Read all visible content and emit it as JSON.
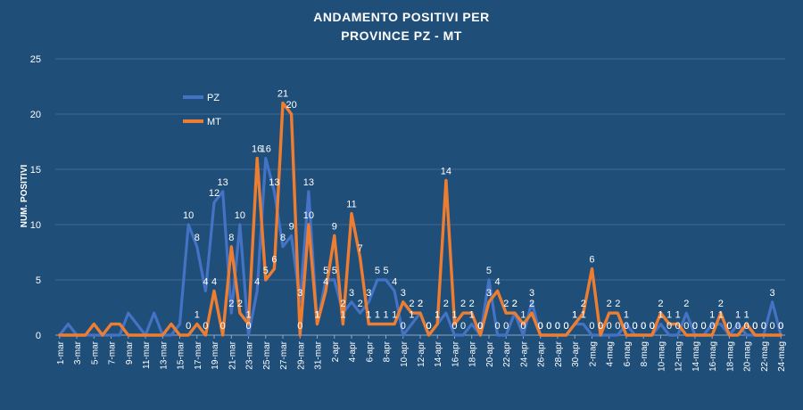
{
  "chart_data": {
    "type": "line",
    "title_lines": [
      "ANDAMENTO POSITIVI  PER",
      "PROVINCE  PZ - MT"
    ],
    "xlabel": "",
    "ylabel": "NUM. POSITIVI",
    "ylim": [
      0,
      25
    ],
    "yticks": [
      0,
      5,
      10,
      15,
      20,
      25
    ],
    "grid": true,
    "legend_position": "top-left-inside",
    "x": [
      "1-mar",
      "2-mar",
      "3-mar",
      "4-mar",
      "5-mar",
      "6-mar",
      "7-mar",
      "8-mar",
      "9-mar",
      "10-mar",
      "11-mar",
      "12-mar",
      "13-mar",
      "14-mar",
      "15-mar",
      "16-mar",
      "17-mar",
      "18-mar",
      "19-mar",
      "20-mar",
      "21-mar",
      "22-mar",
      "23-mar",
      "24-mar",
      "25-mar",
      "26-mar",
      "27-mar",
      "28-mar",
      "29-mar",
      "30-mar",
      "31-mar",
      "1-apr",
      "2-apr",
      "3-apr",
      "4-apr",
      "5-apr",
      "6-apr",
      "7-apr",
      "8-apr",
      "9-apr",
      "10-apr",
      "11-apr",
      "12-apr",
      "13-apr",
      "14-apr",
      "15-apr",
      "16-apr",
      "17-apr",
      "18-apr",
      "19-apr",
      "20-apr",
      "21-apr",
      "22-apr",
      "23-apr",
      "24-apr",
      "25-apr",
      "26-apr",
      "27-apr",
      "28-apr",
      "29-apr",
      "30-apr",
      "1-mag",
      "2-mag",
      "3-mag",
      "4-mag",
      "5-mag",
      "6-mag",
      "7-mag",
      "8-mag",
      "9-mag",
      "10-mag",
      "11-mag",
      "12-mag",
      "13-mag",
      "14-mag",
      "15-mag",
      "16-mag",
      "17-mag",
      "18-mag",
      "19-mag",
      "20-mag",
      "21-mag",
      "22-mag",
      "23-mag",
      "24-mag"
    ],
    "xtick_labels_every": 2,
    "series": [
      {
        "name": "PZ",
        "color": "#4472c4",
        "values": [
          0,
          1,
          0,
          0,
          0,
          0,
          0,
          0,
          2,
          1,
          0,
          2,
          0,
          0,
          1,
          10,
          8,
          4,
          12,
          13,
          2,
          10,
          0,
          4,
          16,
          13,
          8,
          9,
          3,
          13,
          1,
          5,
          5,
          2,
          3,
          2,
          3,
          5,
          5,
          4,
          0,
          1,
          2,
          0,
          1,
          2,
          0,
          0,
          1,
          0,
          5,
          0,
          0,
          2,
          0,
          3,
          0,
          0,
          0,
          0,
          1,
          1,
          0,
          0,
          0,
          0,
          1,
          0,
          0,
          0,
          1,
          0,
          0,
          2,
          0,
          0,
          1,
          1,
          0,
          1,
          0,
          0,
          0,
          3,
          0
        ],
        "labels_from_index": 15
      },
      {
        "name": "MT",
        "color": "#ed7d31",
        "values": [
          0,
          0,
          0,
          0,
          1,
          0,
          1,
          1,
          0,
          0,
          0,
          0,
          0,
          1,
          0,
          0,
          1,
          0,
          4,
          0,
          8,
          2,
          1,
          16,
          5,
          6,
          21,
          20,
          0,
          10,
          1,
          4,
          9,
          1,
          11,
          7,
          1,
          1,
          1,
          1,
          3,
          2,
          2,
          0,
          1,
          14,
          1,
          2,
          2,
          0,
          3,
          4,
          2,
          2,
          1,
          2,
          0,
          0,
          0,
          0,
          1,
          2,
          6,
          0,
          2,
          2,
          0,
          0,
          0,
          0,
          2,
          1,
          1,
          0,
          0,
          0,
          0,
          2,
          0,
          0,
          1,
          0,
          0,
          0,
          0
        ],
        "labels_from_index": 15
      }
    ]
  }
}
